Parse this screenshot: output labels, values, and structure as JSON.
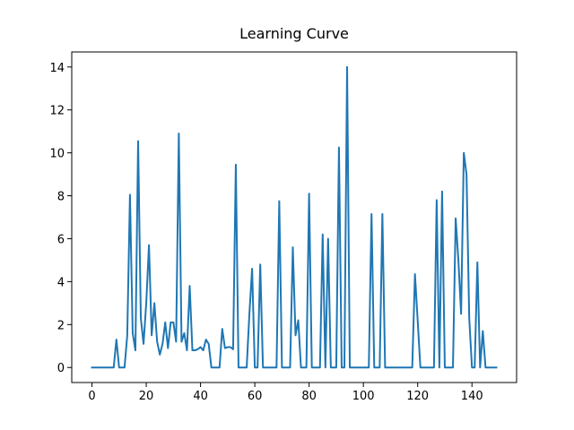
{
  "chart_data": {
    "type": "line",
    "title": "Learning Curve",
    "x": [
      0,
      1,
      2,
      3,
      4,
      5,
      6,
      7,
      8,
      9,
      10,
      11,
      12,
      13,
      14,
      15,
      16,
      17,
      18,
      19,
      20,
      21,
      22,
      23,
      24,
      25,
      26,
      27,
      28,
      29,
      30,
      31,
      32,
      33,
      34,
      35,
      36,
      37,
      38,
      39,
      40,
      41,
      42,
      43,
      44,
      45,
      46,
      47,
      48,
      49,
      50,
      51,
      52,
      53,
      54,
      55,
      56,
      57,
      58,
      59,
      60,
      61,
      62,
      63,
      64,
      65,
      66,
      67,
      68,
      69,
      70,
      71,
      72,
      73,
      74,
      75,
      76,
      77,
      78,
      79,
      80,
      81,
      82,
      83,
      84,
      85,
      86,
      87,
      88,
      89,
      90,
      91,
      92,
      93,
      94,
      95,
      96,
      97,
      98,
      99,
      100,
      101,
      102,
      103,
      104,
      105,
      106,
      107,
      108,
      109,
      110,
      111,
      112,
      113,
      114,
      115,
      116,
      117,
      118,
      119,
      120,
      121,
      122,
      123,
      124,
      125,
      126,
      127,
      128,
      129,
      130,
      131,
      132,
      133,
      134,
      135,
      136,
      137,
      138,
      139,
      140,
      141,
      142,
      143,
      144,
      145,
      146,
      147,
      148,
      149
    ],
    "series": [
      {
        "color": "#1f77b4",
        "values": [
          0,
          0,
          0,
          0,
          0,
          0,
          0,
          0,
          0,
          1.3,
          0,
          0,
          0,
          1.5,
          8.05,
          1.6,
          0.8,
          10.55,
          2.3,
          1.1,
          3.0,
          5.7,
          1.5,
          3.0,
          1.2,
          0.6,
          1.1,
          2.1,
          0.9,
          2.1,
          2.1,
          1.2,
          10.9,
          1.2,
          1.6,
          0.8,
          3.8,
          0.8,
          0.8,
          0.85,
          0.95,
          0.8,
          1.3,
          1.1,
          0,
          0,
          0,
          0,
          1.8,
          0.9,
          0.95,
          0.95,
          0.85,
          9.45,
          0,
          0,
          0,
          0,
          2.5,
          4.6,
          0,
          0,
          4.8,
          0,
          0,
          0,
          0,
          0,
          0,
          7.75,
          0,
          0,
          0,
          0,
          5.6,
          1.5,
          2.2,
          0,
          0,
          0,
          8.1,
          0,
          0,
          0,
          0,
          6.2,
          0,
          6.0,
          0,
          0,
          0,
          10.25,
          0,
          0,
          14.0,
          0,
          0,
          0,
          0,
          0,
          0,
          0,
          0,
          7.15,
          0,
          0,
          0,
          7.15,
          0,
          0,
          0,
          0,
          0,
          0,
          0,
          0,
          0,
          0,
          0,
          4.35,
          2.2,
          0,
          0,
          0,
          0,
          0,
          0,
          7.8,
          0,
          8.2,
          0,
          0,
          0,
          0,
          6.95,
          5.0,
          2.5,
          10.0,
          9.0,
          2.3,
          0,
          0,
          4.9,
          0,
          1.7,
          0,
          0,
          0,
          0,
          0
        ]
      }
    ],
    "xlim": [
      -7.45,
      156.45
    ],
    "ylim": [
      -0.7,
      14.7
    ],
    "xticks": [
      0,
      20,
      40,
      60,
      80,
      100,
      120,
      140
    ],
    "yticks": [
      0,
      2,
      4,
      6,
      8,
      10,
      12,
      14
    ]
  }
}
